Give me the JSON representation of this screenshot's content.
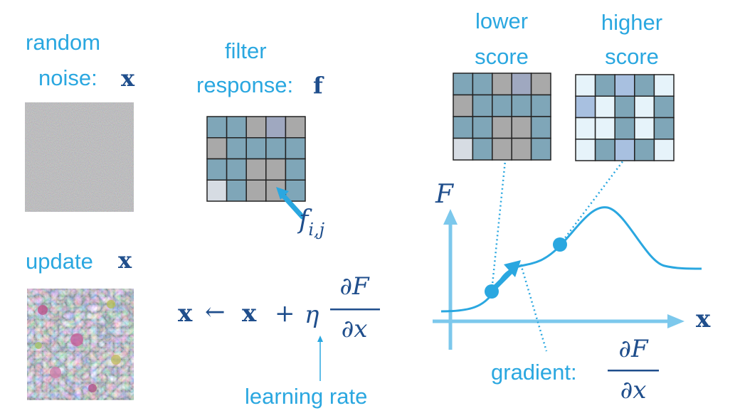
{
  "labels": {
    "random_noise_line1": "random",
    "random_noise_line2": "noise:",
    "x_symbol": "x",
    "filter_line1": "filter",
    "filter_line2": "response:",
    "f_symbol": "f",
    "f_ij_base": "f",
    "f_ij_sub": "i,j",
    "update": "update",
    "update_x": "x",
    "rule_lhs": "x",
    "rule_arrow": "←",
    "rule_x": "x",
    "rule_plus": "+",
    "rule_eta": "η",
    "frac_num": "∂F",
    "frac_den": "∂x",
    "learning_rate": "learning rate",
    "lower_score_line1": "lower",
    "lower_score_line2": "score",
    "higher_score_line1": "higher",
    "higher_score_line2": "score",
    "axis_F": "F",
    "axis_x": "x",
    "gradient": "gradient:",
    "grad_num": "∂F",
    "grad_den": "∂x"
  },
  "colors": {
    "accent": "#2aa7e0",
    "math": "#1f4e8c",
    "axis": "#7cc8ec",
    "grid_line": "#222222"
  },
  "grids": {
    "filter_response": [
      [
        "#7fa6b8",
        "#7fa6b8",
        "#a9a9a9",
        "#9fa8c0",
        "#a9a9a9"
      ],
      [
        "#a9a9a9",
        "#7fa6b8",
        "#7fa6b8",
        "#7fa6b8",
        "#7fa6b8"
      ],
      [
        "#7fa6b8",
        "#7fa6b8",
        "#a9a9a9",
        "#a9a9a9",
        "#7fa6b8"
      ],
      [
        "#d6dce3",
        "#7fa6b8",
        "#a9a9a9",
        "#a9a9a9",
        "#7fa6b8"
      ]
    ],
    "lower_score": [
      [
        "#7fa6b8",
        "#7fa6b8",
        "#a9a9a9",
        "#9fa8c0",
        "#a9a9a9"
      ],
      [
        "#a9a9a9",
        "#7fa6b8",
        "#7fa6b8",
        "#7fa6b8",
        "#7fa6b8"
      ],
      [
        "#7fa6b8",
        "#7fa6b8",
        "#a9a9a9",
        "#a9a9a9",
        "#7fa6b8"
      ],
      [
        "#d6dce3",
        "#7fa6b8",
        "#a9a9a9",
        "#a9a9a9",
        "#7fa6b8"
      ]
    ],
    "higher_score": [
      [
        "#e6f3fa",
        "#7fa6b8",
        "#a8c0e0",
        "#7fa6b8",
        "#e6f3fa"
      ],
      [
        "#a8c0e0",
        "#e6f3fa",
        "#7fa6b8",
        "#e6f3fa",
        "#7fa6b8"
      ],
      [
        "#e6f3fa",
        "#e6f3fa",
        "#7fa6b8",
        "#e6f3fa",
        "#7fa6b8"
      ],
      [
        "#e6f3fa",
        "#7fa6b8",
        "#a8c0e0",
        "#7fa6b8",
        "#e6f3fa"
      ]
    ]
  },
  "images": {
    "random_noise": "noise-image",
    "updated_image": "visualized-pattern-image"
  }
}
